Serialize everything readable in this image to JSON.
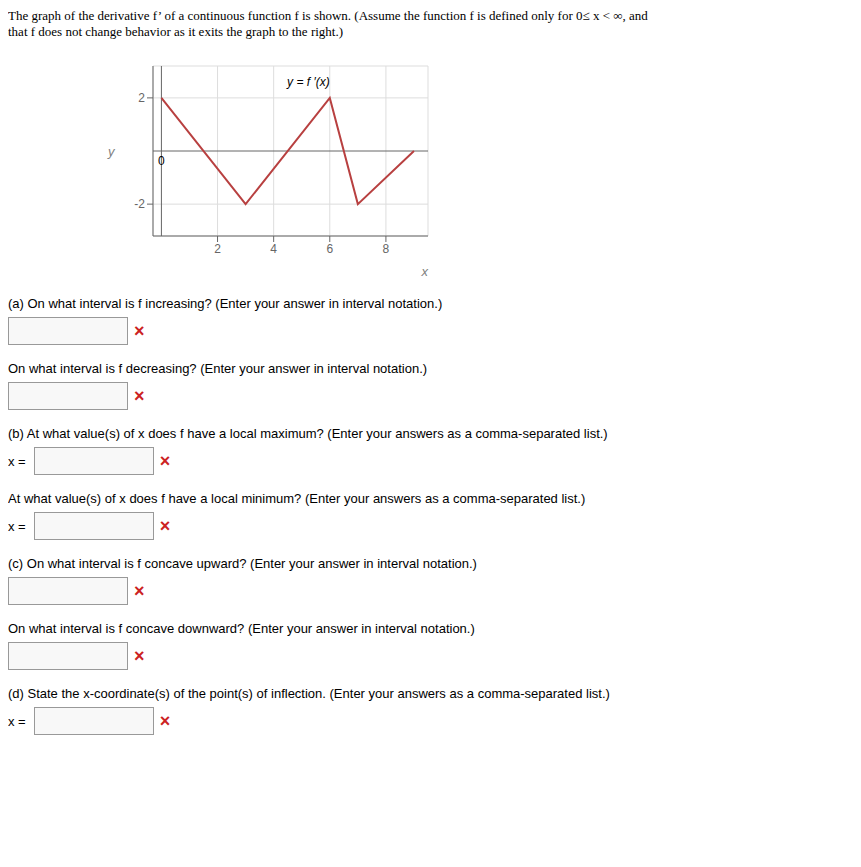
{
  "chart_data": {
    "type": "line",
    "title": "The graph of the derivative f’ of a continuous function f is shown. (Assume the function f is defined only for 0≤ x < ∞, and",
    "subtitle": "that f does not change behavior as it exits the graph to the right.)",
    "x_label": "x",
    "y_label": "y",
    "series": [
      {
        "name": "y = f ′(x)",
        "color": "#b84040",
        "x": [
          0,
          3,
          6,
          7,
          9
        ],
        "values": [
          2,
          -2,
          2,
          -2,
          0
        ]
      }
    ],
    "xlim": [
      -0.3,
      9.5
    ],
    "ylim": [
      -3.2,
      3.2
    ],
    "xticks": [
      2,
      4,
      6,
      8
    ],
    "yticks": [
      -2,
      2
    ],
    "grid": true,
    "annotations": [
      {
        "text": "y = f ′(x)",
        "x": 4.3,
        "y": 2.6
      },
      {
        "text": "0",
        "x": 0,
        "y": 0
      }
    ],
    "questions": [
      {
        "text": "(a) On what interval is f increasing? (Enter your answer in interval notation.)"
      },
      {
        "text": "On what interval is f decreasing? (Enter your answer in interval notation.)"
      },
      {
        "text": "(b) At what value(s) of x does f have a local maximum? (Enter your answers as a comma-separated list.)",
        "prefix": "x ="
      },
      {
        "text": "At what value(s) of x does f have a local minimum? (Enter your answers as a comma-separated list.)",
        "prefix": "x ="
      },
      {
        "text": "(c) On what interval is f concave upward? (Enter your answer in interval notation.)"
      },
      {
        "text": "On what interval is f concave downward? (Enter your answer in interval notation.)"
      },
      {
        "text": "(d) State the x-coordinate(s) of the point(s) of inflection. (Enter your answers as a comma-separated list.)",
        "prefix": "x ="
      }
    ],
    "answer_mark": {
      "text": "×",
      "color": "#cc2222"
    }
  }
}
